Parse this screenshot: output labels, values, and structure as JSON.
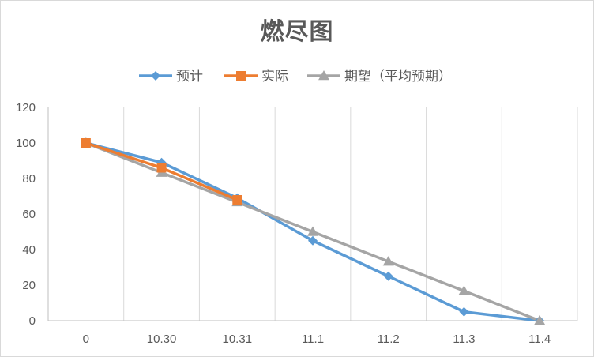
{
  "chart_data": {
    "type": "line",
    "title": "燃尽图",
    "categories": [
      "0",
      "10.30",
      "10.31",
      "11.1",
      "11.2",
      "11.3",
      "11.4"
    ],
    "ylim": [
      0,
      120
    ],
    "yticks": [
      0,
      20,
      40,
      60,
      80,
      100,
      120
    ],
    "grid": "vertical",
    "legend_position": "top",
    "series": [
      {
        "name": "预计",
        "color": "#5b9bd5",
        "marker": "diamond",
        "values": [
          100,
          89,
          69,
          45,
          25,
          5,
          0
        ]
      },
      {
        "name": "实际",
        "color": "#ed7d31",
        "marker": "square",
        "values": [
          100,
          86,
          68,
          null,
          null,
          null,
          null
        ]
      },
      {
        "name": "期望（平均预期）",
        "color": "#a5a5a5",
        "marker": "triangle",
        "values": [
          100,
          83.3,
          66.7,
          50,
          33.3,
          16.7,
          0
        ]
      }
    ]
  }
}
